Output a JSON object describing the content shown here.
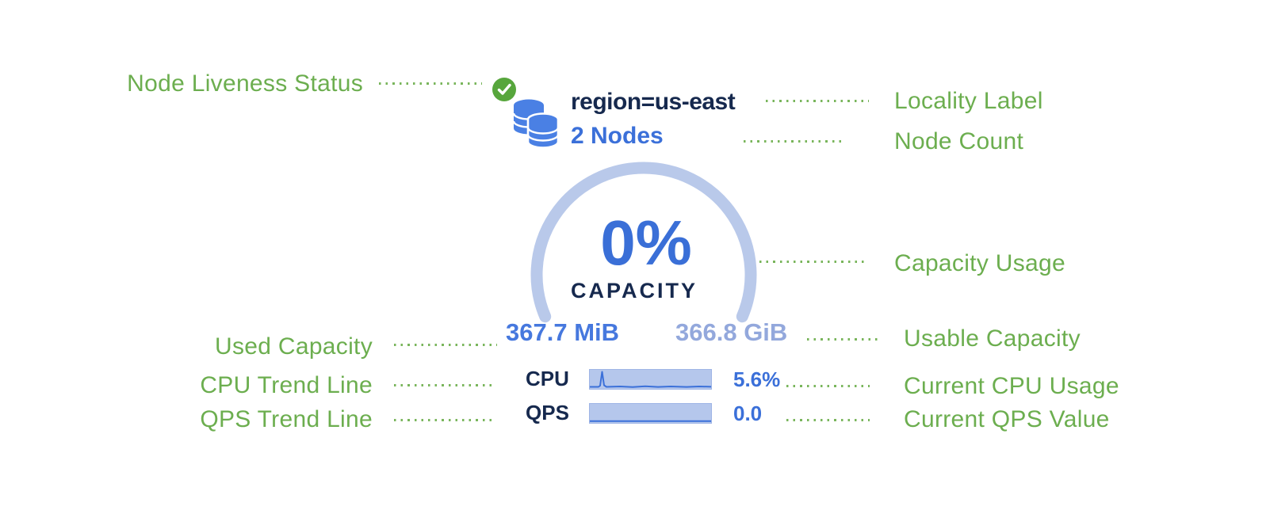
{
  "annotations": {
    "node_liveness": "Node Liveness Status",
    "locality": "Locality Label",
    "node_count": "Node Count",
    "capacity_usage": "Capacity Usage",
    "used_capacity": "Used Capacity",
    "usable_capacity": "Usable Capacity",
    "cpu_trend": "CPU Trend Line",
    "current_cpu": "Current CPU Usage",
    "qps_trend": "QPS Trend Line",
    "current_qps": "Current QPS Value"
  },
  "node": {
    "status_icon": "check-circle-icon",
    "node_icon": "database-stack-icon",
    "locality": "region=us-east",
    "nodes": "2 Nodes",
    "capacity_percent": "0%",
    "capacity_caption": "CAPACITY",
    "used": "367.7 MiB",
    "usable": "366.8 GiB",
    "cpu": {
      "label": "CPU",
      "value": "5.6%"
    },
    "qps": {
      "label": "QPS",
      "value": "0.0"
    }
  },
  "colors": {
    "annotation_green": "#6CAE4F",
    "status_green": "#57A63C",
    "node_blue": "#4A80E4",
    "navy_text": "#16294E",
    "accent_blue": "#3B70D9",
    "used_blue": "#4678DE",
    "usable_muted_blue": "#93A8DC",
    "arc_light_blue": "#B9C9EA",
    "sparkline_fill": "#B5C7EC"
  },
  "sparklines": {
    "cpu": [
      [
        0,
        21.5
      ],
      [
        11,
        21.5
      ],
      [
        13,
        20
      ],
      [
        15.5,
        2.5
      ],
      [
        18,
        19.5
      ],
      [
        21,
        21.5
      ],
      [
        38,
        21
      ],
      [
        54,
        21.8
      ],
      [
        70,
        20.8
      ],
      [
        86,
        21.6
      ],
      [
        102,
        21
      ],
      [
        122,
        21.6
      ],
      [
        138,
        21
      ],
      [
        153,
        21.4
      ]
    ],
    "qps": [
      [
        0,
        21.8
      ],
      [
        153,
        21.8
      ]
    ]
  }
}
